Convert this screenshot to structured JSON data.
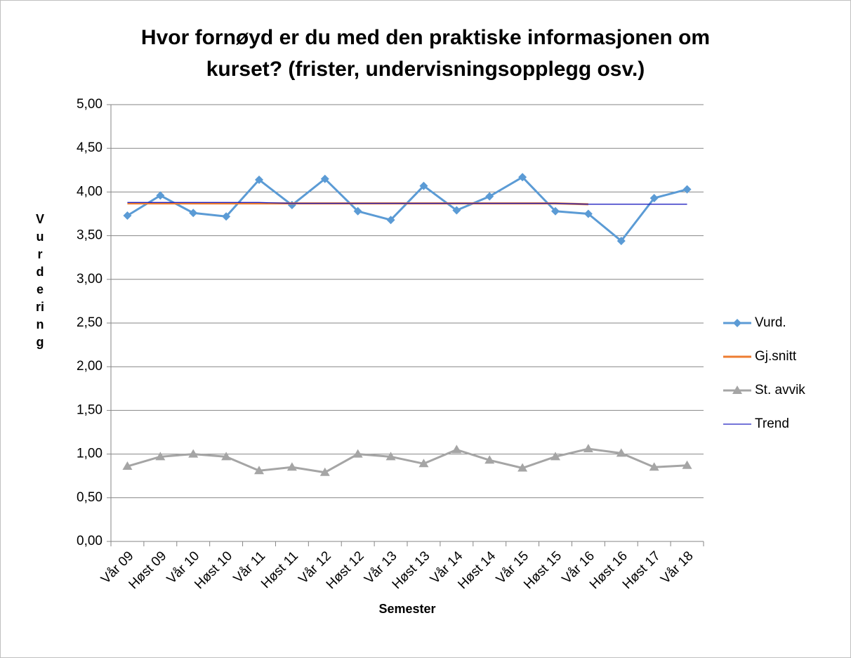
{
  "chart_data": {
    "type": "line",
    "title": [
      "Hvor fornøyd er du med den praktiske informasjonen om",
      "kurset? (frister, undervisningsopplegg osv.)"
    ],
    "x_label": "Semester",
    "y_label": "Vurdering",
    "categories": [
      "Vår 09",
      "Høst 09",
      "Vår 10",
      "Høst 10",
      "Vår 11",
      "Høst 11",
      "Vår 12",
      "Høst 12",
      "Vår 13",
      "Høst 13",
      "Vår 14",
      "Høst 14",
      "Vår 15",
      "Høst 15",
      "Vår 16",
      "Høst 16",
      "Høst 17",
      "Vår 18"
    ],
    "series": [
      {
        "name": "Vurd.",
        "color": "#5b9bd5",
        "marker": "diamond",
        "values": [
          3.73,
          3.96,
          3.76,
          3.72,
          4.14,
          3.85,
          4.15,
          3.78,
          3.68,
          4.07,
          3.79,
          3.95,
          4.17,
          3.78,
          3.75,
          3.44,
          3.93,
          4.03
        ]
      },
      {
        "name": "Gj.snitt",
        "color": "#ed7d31",
        "values": [
          3.87,
          3.87,
          3.87,
          3.87,
          3.87,
          3.87,
          3.87,
          3.87,
          3.87,
          3.87,
          3.87,
          3.87,
          3.87,
          3.87,
          3.86,
          null,
          null,
          null
        ]
      },
      {
        "name": "St. avvik",
        "color": "#a5a5a5",
        "marker": "triangle",
        "values": [
          0.86,
          0.97,
          1.0,
          0.97,
          0.81,
          0.85,
          0.79,
          1.0,
          0.97,
          0.89,
          1.05,
          0.93,
          0.84,
          0.97,
          1.06,
          1.01,
          0.85,
          0.87
        ]
      },
      {
        "name": "Trend",
        "color": "#2020c0",
        "values": [
          3.88,
          3.88,
          3.88,
          3.88,
          3.88,
          3.87,
          3.87,
          3.87,
          3.87,
          3.87,
          3.87,
          3.87,
          3.87,
          3.87,
          3.86,
          3.86,
          3.86,
          3.86
        ]
      }
    ],
    "ylim": [
      0,
      5
    ],
    "yticks": [
      {
        "value": 0,
        "label": "0,00"
      },
      {
        "value": 0.5,
        "label": "0,50"
      },
      {
        "value": 1,
        "label": "1,00"
      },
      {
        "value": 1.5,
        "label": "1,50"
      },
      {
        "value": 2,
        "label": "2,00"
      },
      {
        "value": 2.5,
        "label": "2,50"
      },
      {
        "value": 3,
        "label": "3,00"
      },
      {
        "value": 3.5,
        "label": "3,50"
      },
      {
        "value": 4,
        "label": "4,00"
      },
      {
        "value": 4.5,
        "label": "4,50"
      },
      {
        "value": 5,
        "label": "5,00"
      }
    ],
    "grid": true,
    "legend": "right"
  }
}
